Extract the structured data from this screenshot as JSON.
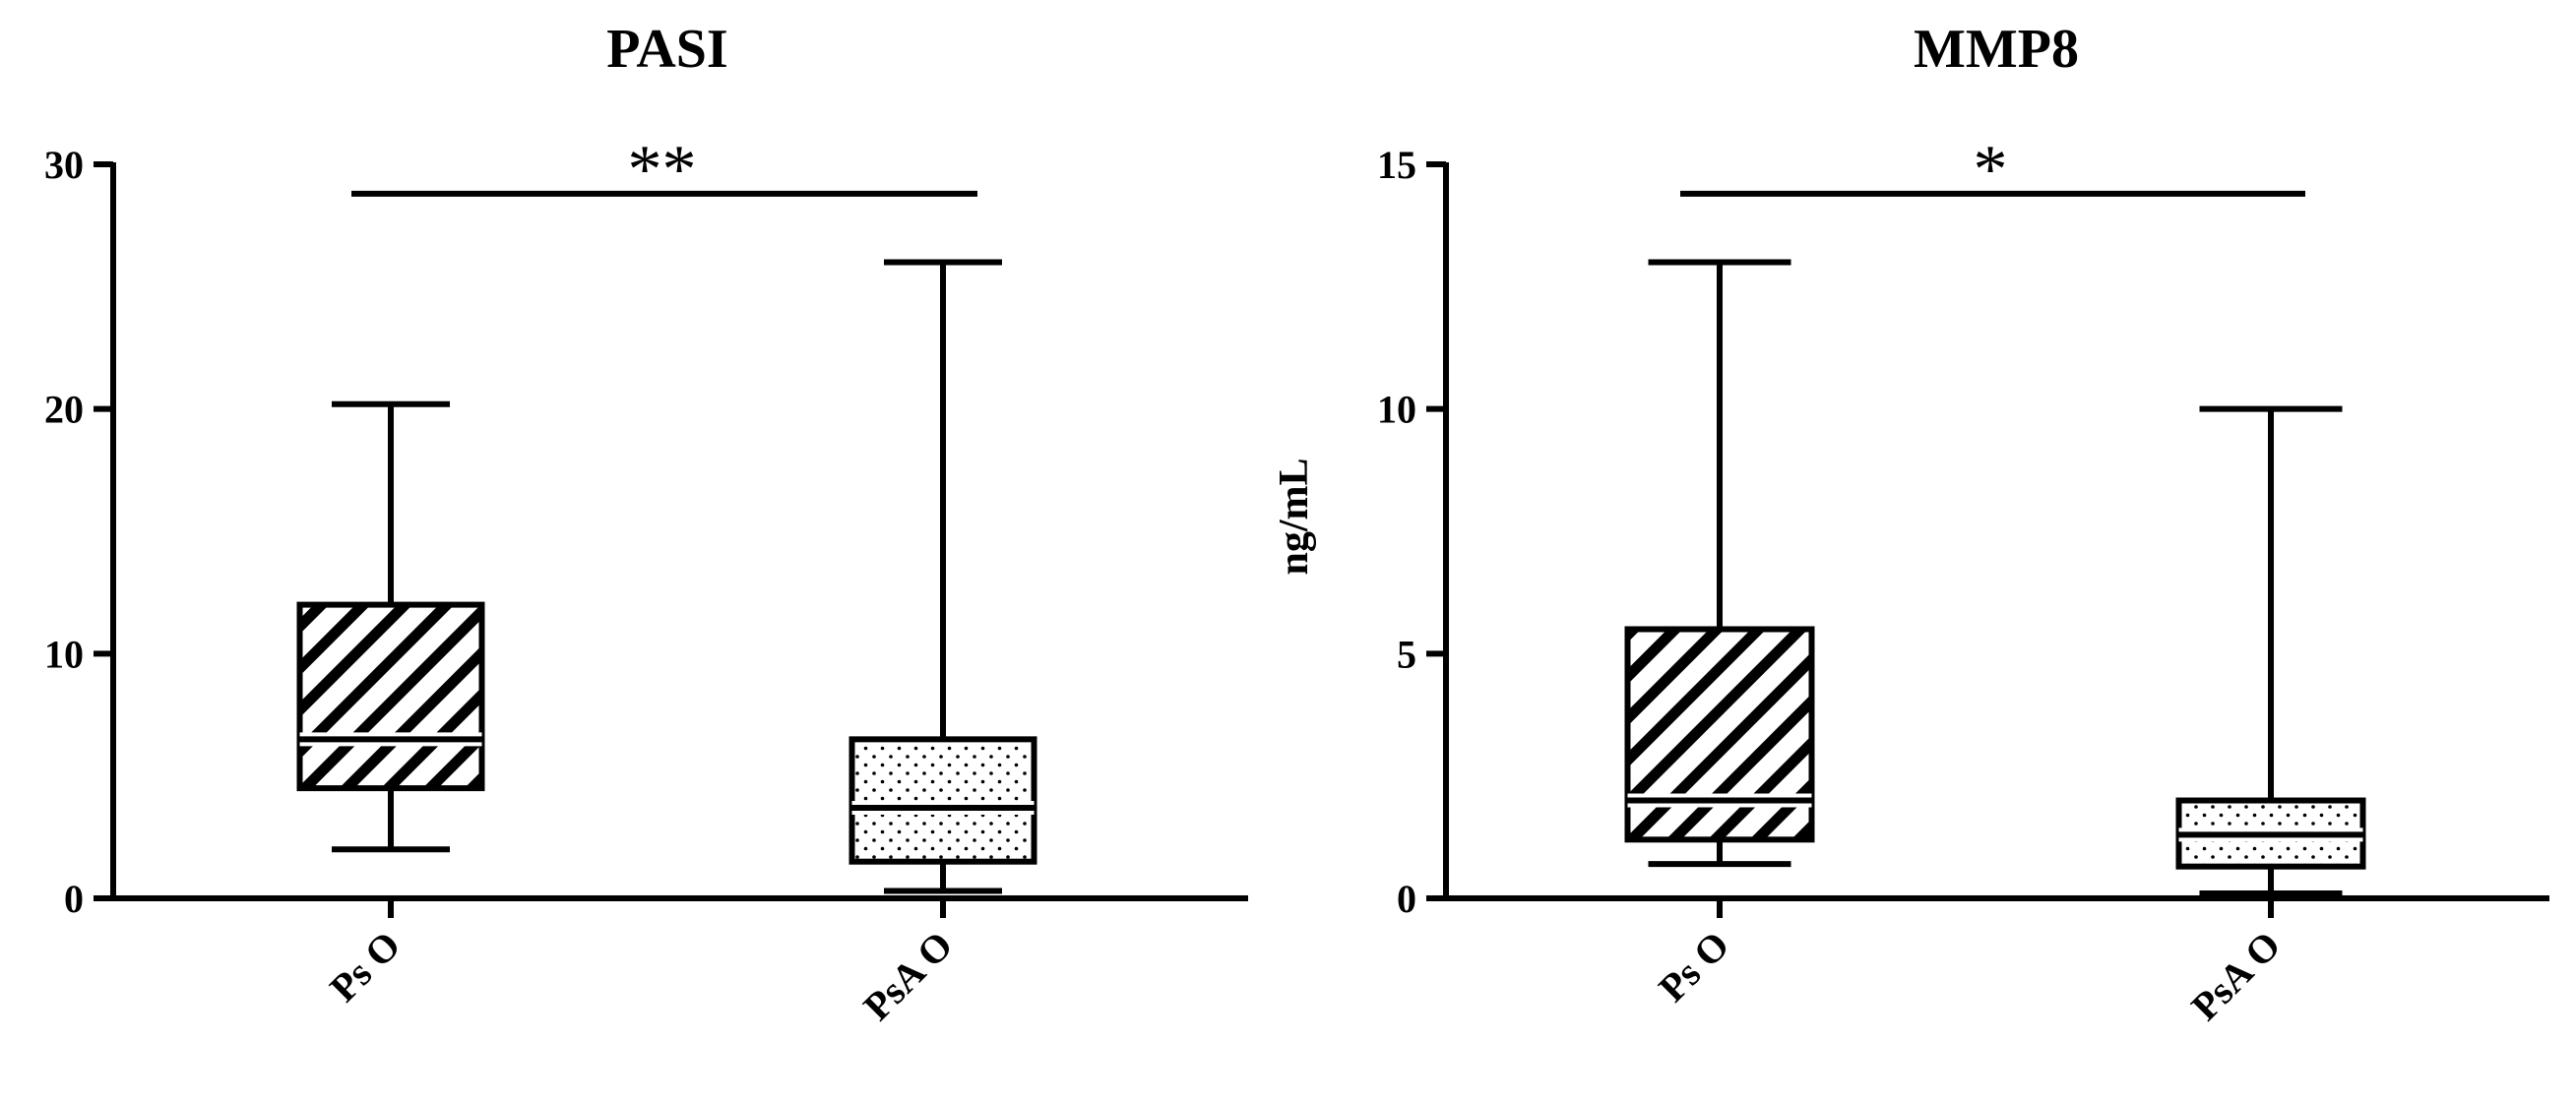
{
  "chart_data": [
    {
      "type": "box",
      "title": "PASI",
      "ylabel": "",
      "ylim": [
        0,
        30
      ],
      "yticks": [
        0,
        10,
        20,
        30
      ],
      "categories": [
        "Ps O",
        "PsA O"
      ],
      "boxes": [
        {
          "name": "Ps O",
          "min": 2,
          "q1": 4.5,
          "median": 6.5,
          "q3": 12,
          "max": 20.2,
          "fill": "diagonal-hatch"
        },
        {
          "name": "PsA O",
          "min": 0.3,
          "q1": 1.5,
          "median": 3.7,
          "q3": 6.5,
          "max": 26,
          "fill": "dots"
        }
      ],
      "significance": {
        "from": "Ps O",
        "to": "PsA O",
        "y": 28.8,
        "label": "**"
      }
    },
    {
      "type": "box",
      "title": "MMP8",
      "ylabel": "ng/mL",
      "ylim": [
        0,
        15
      ],
      "yticks": [
        0,
        5,
        10,
        15
      ],
      "categories": [
        "Ps O",
        "PsA O"
      ],
      "boxes": [
        {
          "name": "Ps O",
          "min": 0.7,
          "q1": 1.2,
          "median": 2,
          "q3": 5.5,
          "max": 13,
          "fill": "diagonal-hatch"
        },
        {
          "name": "PsA O",
          "min": 0.1,
          "q1": 0.65,
          "median": 1.3,
          "q3": 2,
          "max": 10,
          "fill": "dots"
        }
      ],
      "significance": {
        "from": "Ps O",
        "to": "PsA O",
        "y": 14.4,
        "label": "*"
      }
    }
  ]
}
